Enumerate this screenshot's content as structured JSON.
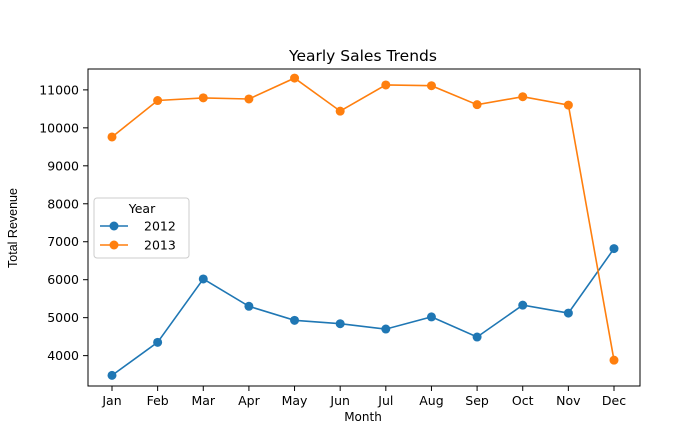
{
  "chart_data": {
    "type": "line",
    "title": "Yearly Sales Trends",
    "xlabel": "Month",
    "ylabel": "Total Revenue",
    "categories": [
      "Jan",
      "Feb",
      "Mar",
      "Apr",
      "May",
      "Jun",
      "Jul",
      "Aug",
      "Sep",
      "Oct",
      "Nov",
      "Dec"
    ],
    "yticks": [
      4000,
      5000,
      6000,
      7000,
      8000,
      9000,
      10000,
      11000
    ],
    "ylim": [
      3200,
      11550
    ],
    "grid": false,
    "legend": {
      "title": "Year",
      "placement": "center-left"
    },
    "series": [
      {
        "name": "2012",
        "color": "#1f77b4",
        "values": [
          3480,
          4350,
          6020,
          5300,
          4930,
          4840,
          4700,
          5020,
          4490,
          5330,
          5120,
          6820
        ]
      },
      {
        "name": "2013",
        "color": "#ff7f0e",
        "values": [
          9760,
          10720,
          10790,
          10760,
          11310,
          10440,
          11130,
          11110,
          10610,
          10820,
          10600,
          3880
        ]
      }
    ]
  }
}
